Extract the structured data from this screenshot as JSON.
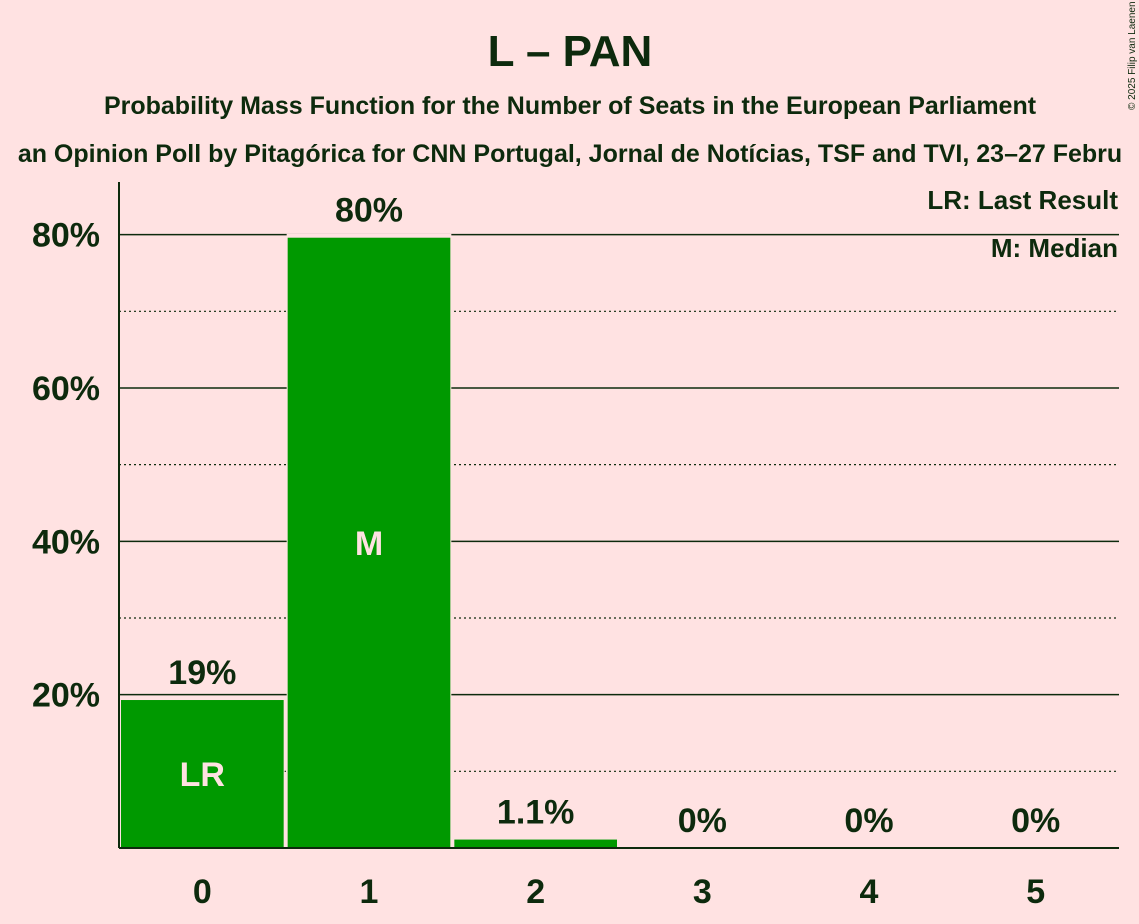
{
  "chart_data": {
    "type": "bar",
    "title": "L – PAN",
    "subtitle": "Probability Mass Function for the Number of Seats in the European Parliament",
    "source": "an Opinion Poll by Pitagórica for CNN Portugal, Jornal de Notícias, TSF and TVI, 23–27 Febru",
    "copyright": "© 2025 Filip van Laenen",
    "categories": [
      "0",
      "1",
      "2",
      "3",
      "4",
      "5"
    ],
    "values": [
      19.3,
      79.6,
      1.1,
      0,
      0,
      0
    ],
    "value_labels": [
      "19%",
      "80%",
      "1.1%",
      "0%",
      "0%",
      "0%"
    ],
    "bar_markers": [
      "LR",
      "M",
      "",
      "",
      "",
      ""
    ],
    "ylim": [
      0,
      87
    ],
    "yticks": [
      20,
      40,
      60,
      80
    ],
    "ytick_labels": [
      "20%",
      "40%",
      "60%",
      "80%"
    ],
    "grid": "solid lines at labelled ticks, dotted lines between",
    "legend": {
      "placement": "top-right",
      "entries": [
        "LR: Last Result",
        "M: Median"
      ]
    },
    "colors": {
      "background": "#ffe2e2",
      "bar": "#009900",
      "text": "#0d2a0d"
    }
  }
}
